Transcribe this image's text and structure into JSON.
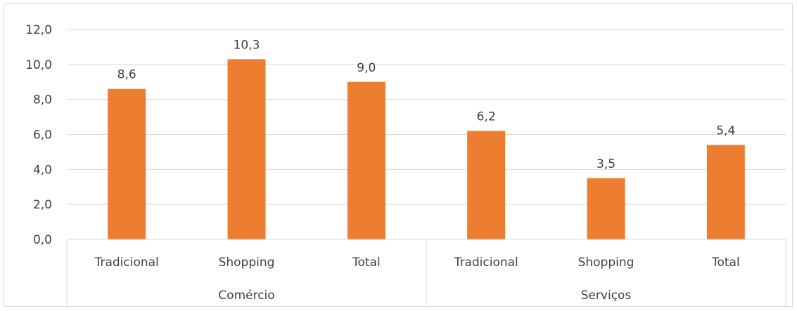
{
  "chart_data": {
    "type": "bar",
    "ylim": [
      0,
      12
    ],
    "y_ticks": [
      "0,0",
      "2,0",
      "4,0",
      "6,0",
      "8,0",
      "10,0",
      "12,0"
    ],
    "grid": true,
    "categories": [
      "Tradicional",
      "Shopping",
      "Total",
      "Tradicional",
      "Shopping",
      "Total"
    ],
    "groups": [
      {
        "name": "Comércio",
        "categories": [
          "Tradicional",
          "Shopping",
          "Total"
        ]
      },
      {
        "name": "Serviços",
        "categories": [
          "Tradicional",
          "Shopping",
          "Total"
        ]
      }
    ],
    "values": [
      8.6,
      10.3,
      9.0,
      6.2,
      3.5,
      5.4
    ],
    "data_labels": [
      "8,6",
      "10,3",
      "9,0",
      "6,2",
      "3,5",
      "5,4"
    ],
    "colors": {
      "bar": "#ED7D31",
      "grid": "#D9D9D9",
      "text": "#404040"
    }
  }
}
